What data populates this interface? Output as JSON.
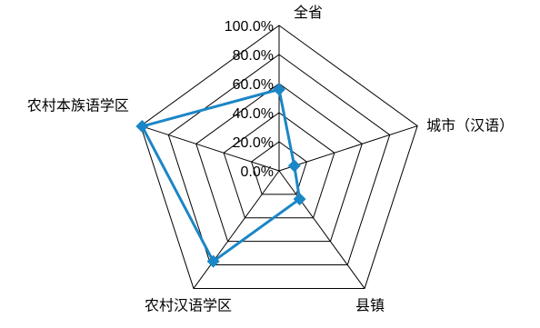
{
  "chart_data": {
    "type": "radar",
    "categories": [
      "全省",
      "城市（汉语）",
      "县镇",
      "农村汉语学区",
      "农村本族语学区"
    ],
    "series": [
      {
        "values": [
          56,
          11,
          24,
          77,
          99
        ]
      }
    ],
    "ticks": [
      "0.0%",
      "20.0%",
      "40.0%",
      "60.0%",
      "80.0%",
      "100.0%"
    ],
    "rlim": [
      0,
      100
    ],
    "grid": true,
    "colors": {
      "series": "#1b86c6",
      "grid": "#000000"
    }
  }
}
